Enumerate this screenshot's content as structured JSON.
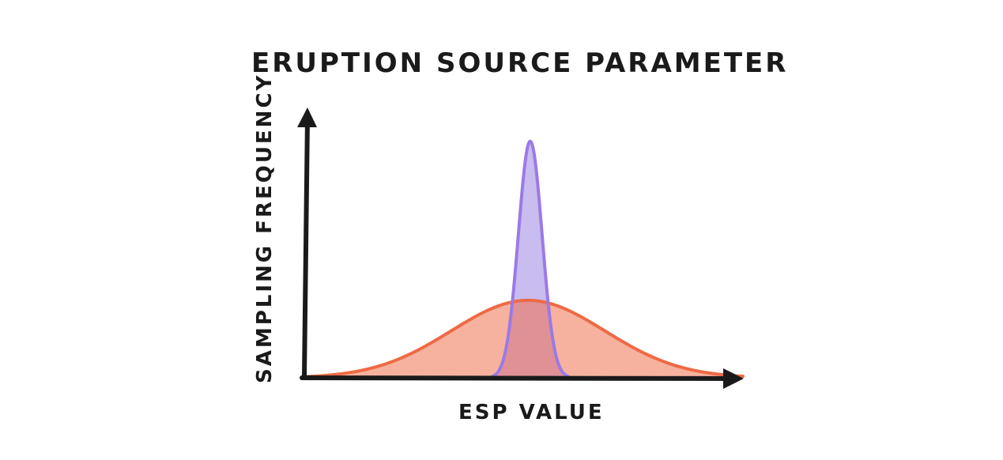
{
  "chart_data": {
    "type": "area",
    "title": "ERUPTION SOURCE PARAMETER",
    "xlabel": "ESP VALUE",
    "ylabel": "SAMPLING FREQUENCY",
    "xlim": [
      0,
      1
    ],
    "ylim": [
      0,
      1
    ],
    "grid": false,
    "x_ticks": [],
    "y_ticks": [],
    "series": [
      {
        "kind": "wide-distribution",
        "fill": "#f6b29e",
        "stroke": "#ee6a45",
        "center": 0.51,
        "spread": 0.175,
        "peak": 0.28
      },
      {
        "kind": "narrow-distribution",
        "fill": "#c9bcef",
        "stroke": "#9b7ae6",
        "center": 0.515,
        "spread": 0.027,
        "peak": 0.855
      }
    ],
    "overlap_fill": "#e09195"
  }
}
